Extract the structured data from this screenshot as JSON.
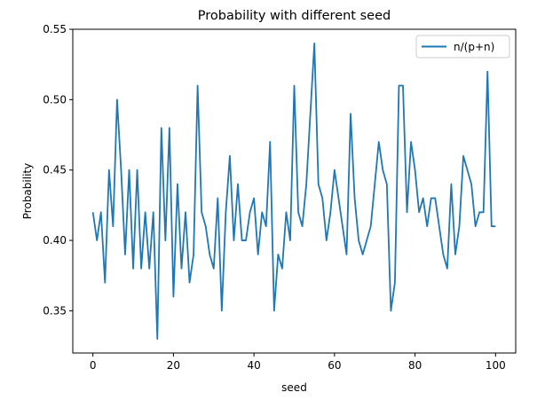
{
  "chart_data": {
    "type": "line",
    "title": "Probability with different seed",
    "xlabel": "seed",
    "ylabel": "Probability",
    "xlim": [
      -5,
      105
    ],
    "ylim": [
      0.32,
      0.55
    ],
    "xticks": [
      0,
      20,
      40,
      60,
      80,
      100
    ],
    "xtick_labels": [
      "0",
      "20",
      "40",
      "60",
      "80",
      "100"
    ],
    "yticks": [
      0.35,
      0.4,
      0.45,
      0.5,
      0.55
    ],
    "ytick_labels": [
      "0.35",
      "0.40",
      "0.45",
      "0.50",
      "0.55"
    ],
    "grid": false,
    "legend_position": "top-right",
    "series": [
      {
        "name": "n/(p+n)",
        "color": "#1f77b4",
        "x": [
          0,
          1,
          2,
          3,
          4,
          5,
          6,
          7,
          8,
          9,
          10,
          11,
          12,
          13,
          14,
          15,
          16,
          17,
          18,
          19,
          20,
          21,
          22,
          23,
          24,
          25,
          26,
          27,
          28,
          29,
          30,
          31,
          32,
          33,
          34,
          35,
          36,
          37,
          38,
          39,
          40,
          41,
          42,
          43,
          44,
          45,
          46,
          47,
          48,
          49,
          50,
          51,
          52,
          53,
          54,
          55,
          56,
          57,
          58,
          59,
          60,
          61,
          62,
          63,
          64,
          65,
          66,
          67,
          68,
          69,
          70,
          71,
          72,
          73,
          74,
          75,
          76,
          77,
          78,
          79,
          80,
          81,
          82,
          83,
          84,
          85,
          86,
          87,
          88,
          89,
          90,
          91,
          92,
          93,
          94,
          95,
          96,
          97,
          98,
          99,
          100
        ],
        "y": [
          0.42,
          0.4,
          0.42,
          0.37,
          0.45,
          0.41,
          0.5,
          0.45,
          0.39,
          0.45,
          0.38,
          0.45,
          0.38,
          0.42,
          0.38,
          0.42,
          0.33,
          0.48,
          0.4,
          0.48,
          0.36,
          0.44,
          0.38,
          0.42,
          0.37,
          0.39,
          0.51,
          0.42,
          0.41,
          0.39,
          0.38,
          0.43,
          0.35,
          0.42,
          0.46,
          0.4,
          0.44,
          0.4,
          0.4,
          0.42,
          0.43,
          0.39,
          0.42,
          0.41,
          0.47,
          0.35,
          0.39,
          0.38,
          0.42,
          0.4,
          0.51,
          0.42,
          0.41,
          0.44,
          0.49,
          0.54,
          0.44,
          0.43,
          0.4,
          0.42,
          0.45,
          0.43,
          0.41,
          0.39,
          0.49,
          0.43,
          0.4,
          0.39,
          0.4,
          0.41,
          0.44,
          0.47,
          0.45,
          0.44,
          0.35,
          0.37,
          0.51,
          0.51,
          0.42,
          0.47,
          0.45,
          0.42,
          0.43,
          0.41,
          0.43,
          0.43,
          0.41,
          0.39,
          0.38,
          0.44,
          0.39,
          0.41,
          0.46,
          0.45,
          0.44,
          0.41,
          0.42,
          0.42,
          0.52,
          0.41,
          0.41
        ]
      }
    ]
  }
}
